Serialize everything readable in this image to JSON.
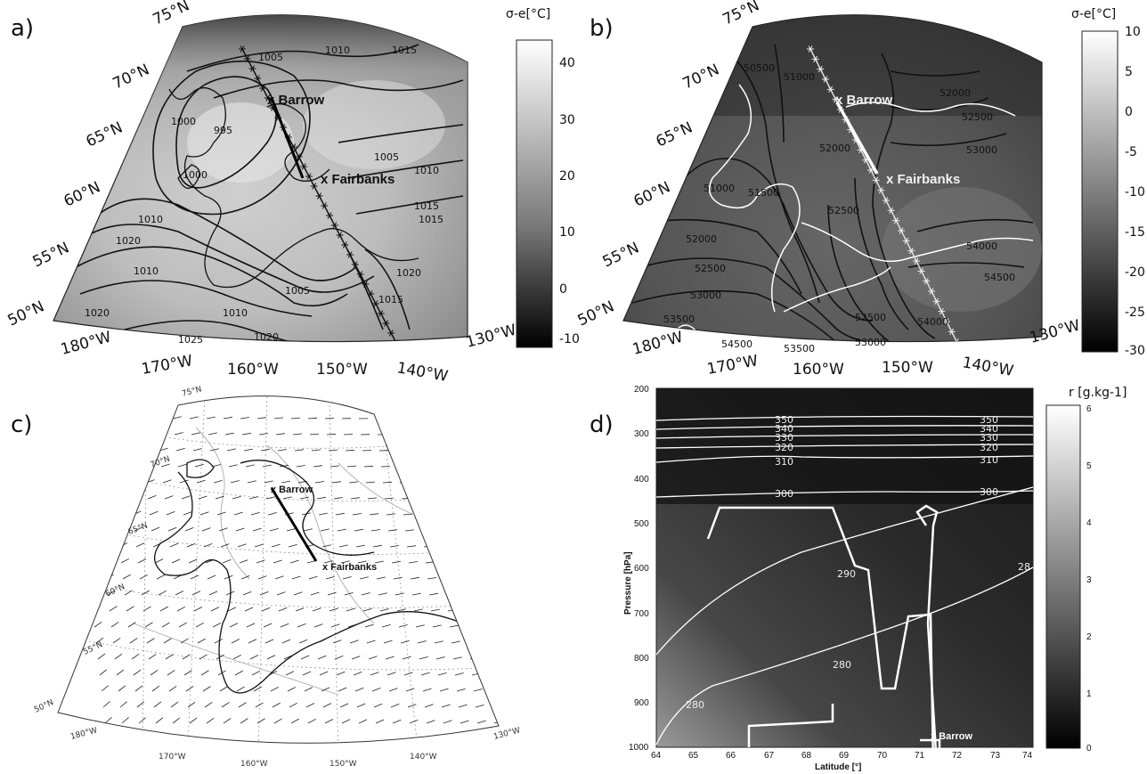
{
  "panels": {
    "a": {
      "label": "a)",
      "colorbar": {
        "title": "σ-e[°C]",
        "ticks": [
          "40",
          "30",
          "20",
          "10",
          "0",
          "-10"
        ],
        "range": [
          -15,
          45
        ]
      },
      "lat_labels": [
        "75°N",
        "70°N",
        "65°N",
        "60°N",
        "55°N",
        "50°N"
      ],
      "lon_labels": [
        "180°W",
        "170°W",
        "160°W",
        "150°W",
        "140°W",
        "130°W"
      ],
      "contour_labels": [
        "1005",
        "1010",
        "1015",
        "995",
        "1000",
        "1000",
        "1005",
        "1010",
        "1015",
        "1005",
        "1010",
        "1015",
        "1020",
        "1010",
        "1005",
        "1005",
        "1010",
        "1015",
        "1015",
        "1020",
        "1020",
        "1025",
        "1020"
      ],
      "places": [
        "x Barrow",
        "x Fairbanks"
      ]
    },
    "b": {
      "label": "b)",
      "colorbar": {
        "title": "σ-e[°C]",
        "ticks": [
          "10",
          "5",
          "0",
          "-5",
          "-10",
          "-15",
          "-20",
          "-25",
          "-30"
        ],
        "range": [
          -30,
          10
        ]
      },
      "lat_labels": [
        "75°N",
        "70°N",
        "65°N",
        "60°N",
        "55°N",
        "50°N"
      ],
      "lon_labels": [
        "180°W",
        "170°W",
        "160°W",
        "150°W",
        "140°W",
        "130°W"
      ],
      "contour_labels": [
        "50500",
        "51000",
        "52000",
        "52500",
        "53000",
        "51000",
        "51500",
        "52000",
        "52500",
        "53000",
        "52000",
        "52500",
        "53000",
        "53500",
        "54000",
        "54500",
        "53500",
        "54000",
        "54500",
        "52500",
        "53000"
      ],
      "places": [
        "x Barrow",
        "x Fairbanks"
      ]
    },
    "c": {
      "label": "c)",
      "lat_labels": [
        "75°N",
        "70°N",
        "65°N",
        "60°N",
        "55°N",
        "50°N"
      ],
      "lon_labels": [
        "180°W",
        "170°W",
        "160°W",
        "150°W",
        "140°W",
        "130°W"
      ],
      "places": [
        "x Barrow",
        "x Fairbanks"
      ]
    },
    "d": {
      "label": "d)",
      "colorbar": {
        "title": "r [g.kg-1]",
        "ticks": [
          "6",
          "5",
          "4",
          "3",
          "2",
          "1",
          "0"
        ],
        "range": [
          0,
          6
        ]
      },
      "ylabel": "Pressure [hPa]",
      "xlabel": "Latitude [°]",
      "yticks": [
        "200",
        "300",
        "400",
        "500",
        "600",
        "700",
        "800",
        "900",
        "1000"
      ],
      "xticks": [
        "64",
        "65",
        "66",
        "67",
        "68",
        "69",
        "70",
        "71",
        "72",
        "73",
        "74"
      ],
      "theta_labels_left": [
        "350",
        "340",
        "330",
        "320",
        "310",
        "300"
      ],
      "theta_labels_right": [
        "350",
        "340",
        "330",
        "320",
        "310",
        "300"
      ],
      "theta_labels_low": [
        "290",
        "280",
        "280",
        "28"
      ],
      "place": "x Barrow"
    }
  }
}
